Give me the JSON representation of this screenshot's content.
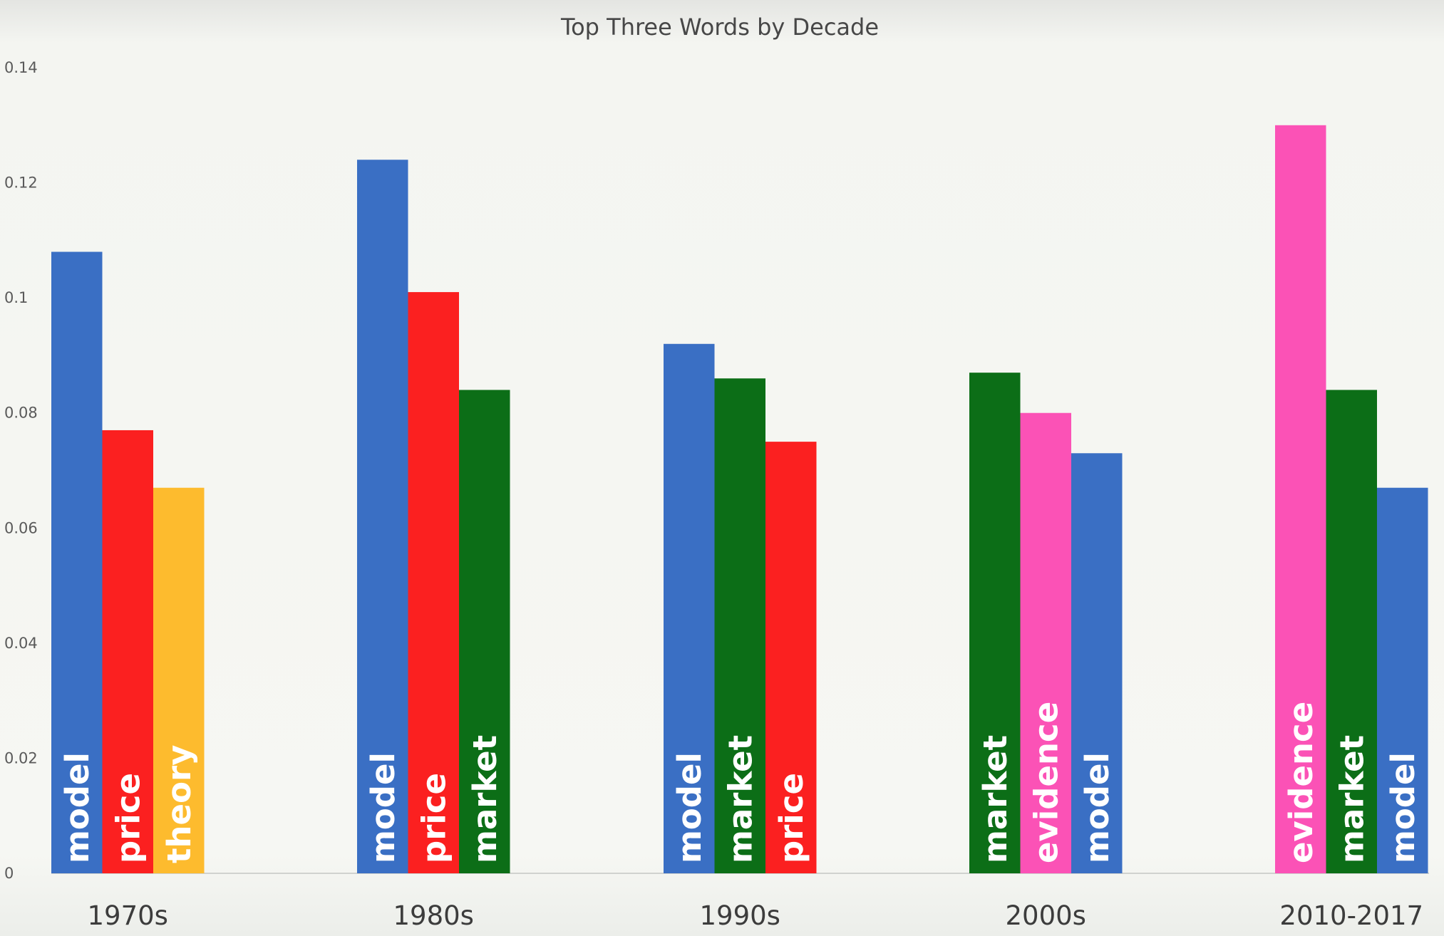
{
  "chart_data": {
    "type": "bar",
    "title": "Top Three Words by Decade",
    "xlabel": "",
    "ylabel": "",
    "ylim": [
      0,
      0.14
    ],
    "yticks": [
      "0",
      "0.02",
      "0.04",
      "0.06",
      "0.08",
      "0.1",
      "0.12",
      "0.14"
    ],
    "grid": false,
    "legend": "none",
    "colors": {
      "model": "#3a6fc4",
      "price": "#fb2020",
      "theory": "#fdbb2e",
      "market": "#0c6e17",
      "evidence": "#fb52b6"
    },
    "groups": [
      {
        "category": "1970s",
        "bars": [
          {
            "word": "model",
            "value": 0.108
          },
          {
            "word": "price",
            "value": 0.077
          },
          {
            "word": "theory",
            "value": 0.067
          }
        ]
      },
      {
        "category": "1980s",
        "bars": [
          {
            "word": "model",
            "value": 0.124
          },
          {
            "word": "price",
            "value": 0.101
          },
          {
            "word": "market",
            "value": 0.084
          }
        ]
      },
      {
        "category": "1990s",
        "bars": [
          {
            "word": "model",
            "value": 0.092
          },
          {
            "word": "market",
            "value": 0.086
          },
          {
            "word": "price",
            "value": 0.075
          }
        ]
      },
      {
        "category": "2000s",
        "bars": [
          {
            "word": "market",
            "value": 0.087
          },
          {
            "word": "evidence",
            "value": 0.08
          },
          {
            "word": "model",
            "value": 0.073
          }
        ]
      },
      {
        "category": "2010-2017",
        "bars": [
          {
            "word": "evidence",
            "value": 0.13
          },
          {
            "word": "market",
            "value": 0.084
          },
          {
            "word": "model",
            "value": 0.067
          }
        ]
      }
    ]
  }
}
